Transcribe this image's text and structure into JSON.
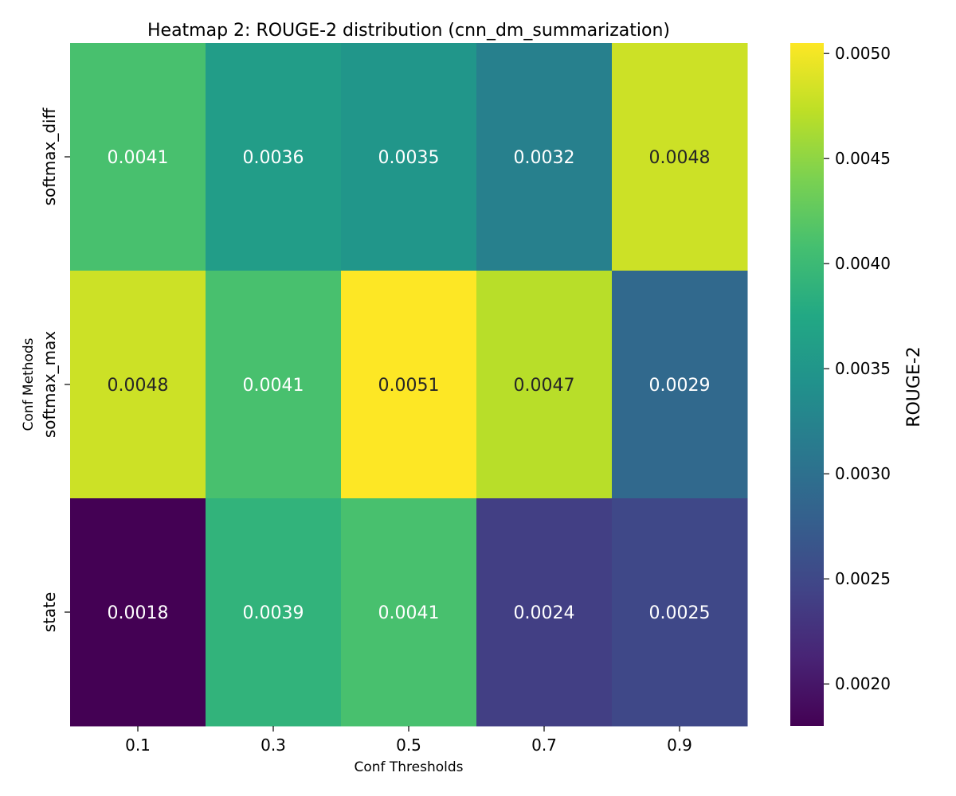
{
  "chart_data": {
    "type": "heatmap",
    "title": "Heatmap 2: ROUGE-2 distribution (cnn_dm_summarization)",
    "xlabel": "Conf Thresholds",
    "ylabel": "Conf Methods",
    "x_categories": [
      "0.1",
      "0.3",
      "0.5",
      "0.7",
      "0.9"
    ],
    "y_categories": [
      "softmax_diff",
      "softmax_max",
      "state"
    ],
    "values": [
      [
        0.0041,
        0.0036,
        0.0035,
        0.0032,
        0.0048
      ],
      [
        0.0048,
        0.0041,
        0.0051,
        0.0047,
        0.0029
      ],
      [
        0.0018,
        0.0039,
        0.0041,
        0.0024,
        0.0025
      ]
    ],
    "cell_labels": [
      [
        "0.0041",
        "0.0036",
        "0.0035",
        "0.0032",
        "0.0048"
      ],
      [
        "0.0048",
        "0.0041",
        "0.0051",
        "0.0047",
        "0.0029"
      ],
      [
        "0.0018",
        "0.0039",
        "0.0041",
        "0.0024",
        "0.0025"
      ]
    ],
    "colorbar": {
      "label": "ROUGE-2",
      "colormap": "viridis",
      "range": [
        0.0018,
        0.00505
      ],
      "ticks": [
        0.002,
        0.0025,
        0.003,
        0.0035,
        0.004,
        0.0045,
        0.005
      ],
      "tick_labels": [
        "0.0020",
        "0.0025",
        "0.0030",
        "0.0035",
        "0.0040",
        "0.0045",
        "0.0050"
      ]
    },
    "grid": false
  }
}
